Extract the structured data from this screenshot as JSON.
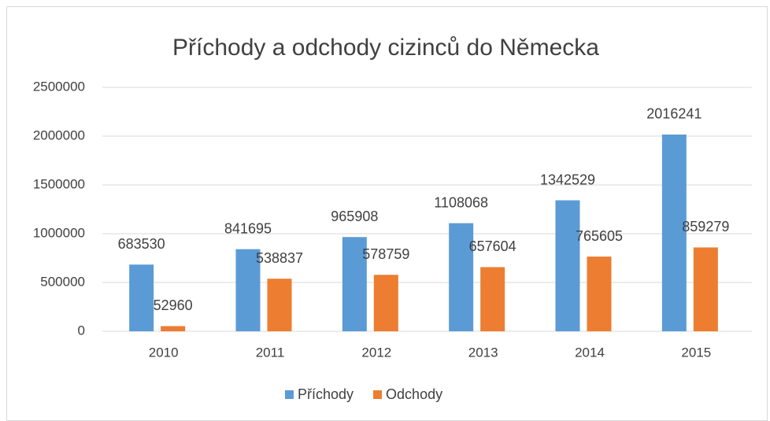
{
  "chart_data": {
    "type": "bar",
    "title": "Příchody a odchody cizinců do Německa",
    "categories": [
      "2010",
      "2011",
      "2012",
      "2013",
      "2014",
      "2015"
    ],
    "series": [
      {
        "name": "Příchody",
        "color": "#5b9bd5",
        "values": [
          683530,
          841695,
          965908,
          1108068,
          1342529,
          2016241
        ]
      },
      {
        "name": "Odchody",
        "color": "#ed7d31",
        "values": [
          52960,
          538837,
          578759,
          657604,
          765605,
          859279
        ]
      }
    ],
    "ylim": [
      0,
      2500000
    ],
    "yticks": [
      0,
      500000,
      1000000,
      1500000,
      2000000,
      2500000
    ],
    "grid": true,
    "legend": "bottom"
  }
}
